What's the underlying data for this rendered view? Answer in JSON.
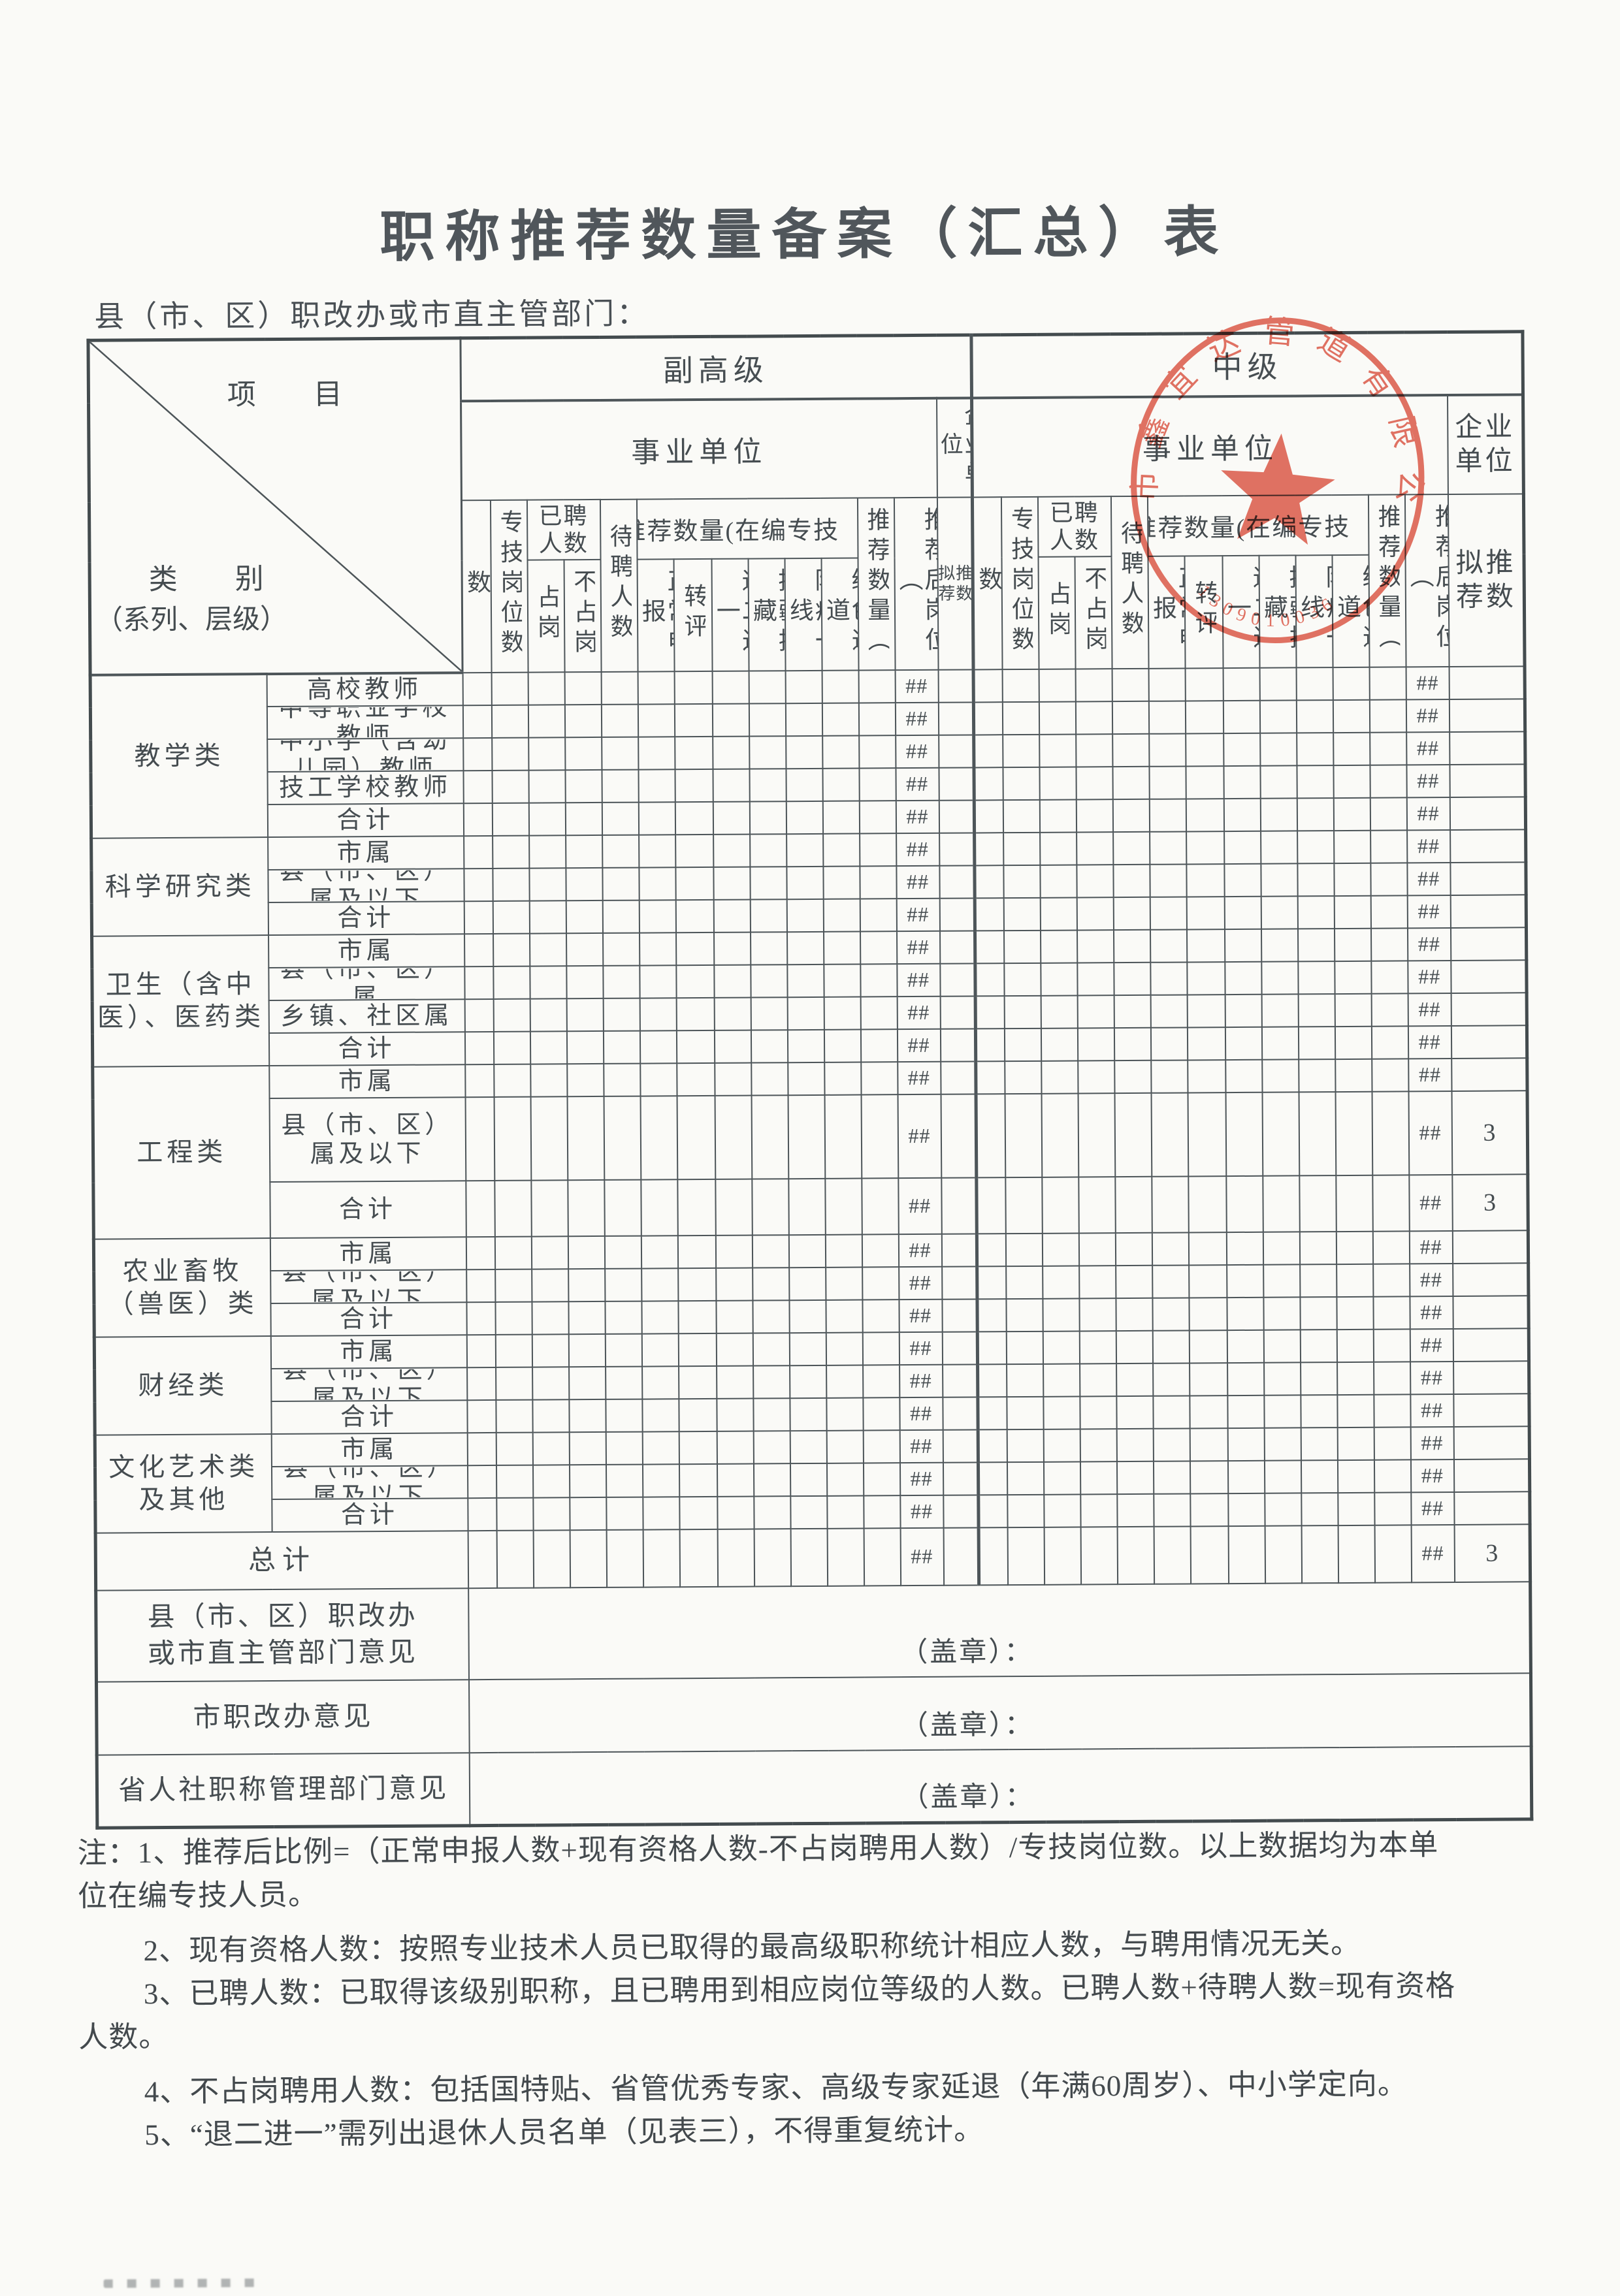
{
  "page": {
    "title": "职称推荐数量备案（汇总）表",
    "subtitle": "县（市、区）职改办或市直主管部门："
  },
  "corner": {
    "top_label": "项　　目",
    "bottom_label": "类　　别",
    "bottom_sub": "（系列、层级）"
  },
  "sections": [
    {
      "level": "副高级",
      "institution": "事业单位",
      "enterprise": "企业单位"
    },
    {
      "level": "中级",
      "institution": "事业单位",
      "enterprise": "企业单位"
    }
  ],
  "columns": {
    "existing": "现有资格人数",
    "positions": "专技岗位数",
    "hired": "已聘人数",
    "hired_on": "占岗",
    "hired_off": "不占岗",
    "waiting": "待聘人数",
    "rec_group": "推荐数量(在编专技",
    "normal": "正常申报",
    "transfer": "转评",
    "retire": "退二进一",
    "aid": "援疆援藏",
    "epidemic": "防疫一线",
    "green": "绿色通道",
    "rec_qty": "推荐数量（",
    "post_after": "推荐后岗位（",
    "proposed": "拟推荐数"
  },
  "rows": [
    {
      "category": "教学类",
      "cat_span": 5,
      "sub": "高校教师",
      "h": "r",
      "fg_post": "##",
      "mid_post": "##",
      "fg_qy": "",
      "mid_qy": ""
    },
    {
      "sub": "中等职业学校教师",
      "h": "r",
      "fg_post": "##",
      "mid_post": "##",
      "fg_qy": "",
      "mid_qy": ""
    },
    {
      "sub": "中小学（含幼儿园）教师",
      "h": "r",
      "fg_post": "##",
      "mid_post": "##",
      "fg_qy": "",
      "mid_qy": ""
    },
    {
      "sub": "技工学校教师",
      "h": "r",
      "fg_post": "##",
      "mid_post": "##",
      "fg_qy": "",
      "mid_qy": ""
    },
    {
      "sub": "合计",
      "h": "r",
      "fg_post": "##",
      "mid_post": "##",
      "fg_qy": "",
      "mid_qy": ""
    },
    {
      "category": "科学研究类",
      "cat_span": 3,
      "sub": "市属",
      "h": "r",
      "fg_post": "##",
      "mid_post": "##",
      "fg_qy": "",
      "mid_qy": ""
    },
    {
      "sub": "县（市、区）属及以下",
      "h": "r",
      "fg_post": "##",
      "mid_post": "##",
      "fg_qy": "",
      "mid_qy": ""
    },
    {
      "sub": "合计",
      "h": "r",
      "fg_post": "##",
      "mid_post": "##",
      "fg_qy": "",
      "mid_qy": ""
    },
    {
      "category": "卫生（含中医）、医药类",
      "cat_span": 4,
      "sub": "市属",
      "h": "r",
      "fg_post": "##",
      "mid_post": "##",
      "fg_qy": "",
      "mid_qy": ""
    },
    {
      "sub": "县（市、区）属",
      "h": "r",
      "fg_post": "##",
      "mid_post": "##",
      "fg_qy": "",
      "mid_qy": ""
    },
    {
      "sub": "乡镇、社区属",
      "h": "r",
      "fg_post": "##",
      "mid_post": "##",
      "fg_qy": "",
      "mid_qy": ""
    },
    {
      "sub": "合计",
      "h": "r",
      "fg_post": "##",
      "mid_post": "##",
      "fg_qy": "",
      "mid_qy": ""
    },
    {
      "category": "工程类",
      "cat_span": 3,
      "sub": "市属",
      "h": "r",
      "fg_post": "##",
      "mid_post": "##",
      "fg_qy": "",
      "mid_qy": ""
    },
    {
      "sub": "县（市、区）属及以下",
      "h": "t1",
      "fg_post": "##",
      "mid_post": "##",
      "fg_qy": "",
      "mid_qy": "3"
    },
    {
      "sub": "合计",
      "h": "t2",
      "fg_post": "##",
      "mid_post": "##",
      "fg_qy": "",
      "mid_qy": "3"
    },
    {
      "category": "农业畜牧（兽医）类",
      "cat_span": 3,
      "sub": "市属",
      "h": "r",
      "fg_post": "##",
      "mid_post": "##",
      "fg_qy": "",
      "mid_qy": ""
    },
    {
      "sub": "县（市、区）属及以下",
      "h": "r",
      "fg_post": "##",
      "mid_post": "##",
      "fg_qy": "",
      "mid_qy": ""
    },
    {
      "sub": "合计",
      "h": "r",
      "fg_post": "##",
      "mid_post": "##",
      "fg_qy": "",
      "mid_qy": ""
    },
    {
      "category": "财经类",
      "cat_span": 3,
      "sub": "市属",
      "h": "r",
      "fg_post": "##",
      "mid_post": "##",
      "fg_qy": "",
      "mid_qy": ""
    },
    {
      "sub": "县（市、区）属及以下",
      "h": "r",
      "fg_post": "##",
      "mid_post": "##",
      "fg_qy": "",
      "mid_qy": ""
    },
    {
      "sub": "合计",
      "h": "r",
      "fg_post": "##",
      "mid_post": "##",
      "fg_qy": "",
      "mid_qy": ""
    },
    {
      "category": "文化艺术类及其他",
      "cat_span": 3,
      "sub": "市属",
      "h": "r",
      "fg_post": "##",
      "mid_post": "##",
      "fg_qy": "",
      "mid_qy": ""
    },
    {
      "sub": "县（市、区）属及以下",
      "h": "r",
      "fg_post": "##",
      "mid_post": "##",
      "fg_qy": "",
      "mid_qy": ""
    },
    {
      "sub": "合计",
      "h": "r",
      "fg_post": "##",
      "mid_post": "##",
      "fg_qy": "",
      "mid_qy": ""
    },
    {
      "total_label": "总计",
      "h": "tot",
      "fg_post": "##",
      "mid_post": "##",
      "fg_qy": "",
      "mid_qy": "3"
    }
  ],
  "opinions": [
    {
      "label_lines": [
        "县（市、区）职改办",
        "或市直主管部门意见"
      ],
      "stamp_hint": "（盖章）："
    },
    {
      "label_lines": [
        "市职改办意见"
      ],
      "stamp_hint": "（盖章）："
    },
    {
      "label_lines": [
        "省人社职称管理部门意见"
      ],
      "stamp_hint": "（盖章）："
    }
  ],
  "notes": {
    "lines": [
      "注：1、推荐后比例=（正常申报人数+现有资格人数-不占岗聘用人数）/专技岗位数。以上数据均为本单",
      "位在编专技人员。",
      "2、现有资格人数：按照专业技术人员已取得的最高级职称统计相应人数，与聘用情况无关。",
      "3、已聘人数：已取得该级别职称，且已聘用到相应岗位等级的人数。已聘人数+待聘人数=现有资格",
      "人数。",
      "4、不占岗聘用人数：包括国特贴、省管优秀专家、高级专家延退（年满60周岁）、中小学定向。",
      "5、“退二进一”需列出退休人员名单（见表三），不得重复统计。"
    ]
  },
  "stamp": {
    "company": "州市鑫宜达管道有限公司",
    "number": "1309010036",
    "color": "#d94f3c"
  }
}
